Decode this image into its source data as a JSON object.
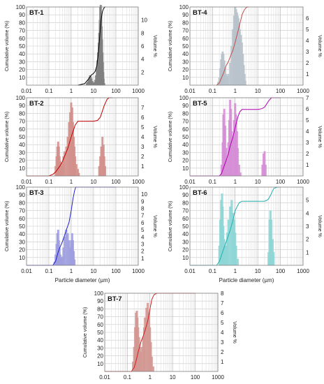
{
  "chart_data": [
    {
      "panel": "BT-1",
      "type": "bar",
      "bar_color": "#808080",
      "line_color": "#000000",
      "ylabel_left": "Cumulative volume (%)",
      "ylabel_right": "Volume %",
      "xlabel": "",
      "ylim_left": [
        0,
        100
      ],
      "ylim_right": [
        0,
        12
      ],
      "xscale": "log",
      "xlim": [
        0.01,
        1000
      ],
      "yticks_left": [
        "10",
        "20",
        "30",
        "40",
        "50",
        "60",
        "70",
        "80",
        "90",
        "100"
      ],
      "yticks_right": [
        "2",
        "4",
        "6",
        "8",
        "10"
      ],
      "xticks": [
        "0.01",
        "0.1",
        "1",
        "10",
        "100",
        "1000"
      ],
      "bars": {
        "x": [
          5,
          5.5,
          6,
          6.5,
          7,
          7.5,
          8,
          9,
          10,
          11,
          12,
          13,
          14,
          15,
          16,
          17,
          18,
          19,
          20,
          21,
          22,
          23,
          24,
          25,
          26,
          27,
          28,
          30
        ],
        "values": [
          0.3,
          0.5,
          0.8,
          1.2,
          1.5,
          1.3,
          1.0,
          0.6,
          0.4,
          0.4,
          0.8,
          1.5,
          2.5,
          3.8,
          5,
          6.5,
          8,
          10,
          12,
          12.3,
          11,
          9,
          7,
          5,
          3.5,
          2,
          1,
          0.3
        ]
      },
      "cumulative": {
        "x": [
          2,
          4,
          6,
          8,
          10,
          12,
          14,
          16,
          18,
          20,
          22,
          25,
          28,
          32,
          35
        ],
        "values": [
          0,
          2,
          8,
          13,
          15,
          18,
          25,
          38,
          55,
          72,
          85,
          94,
          98,
          100,
          100
        ]
      }
    },
    {
      "panel": "BT-4",
      "type": "bar",
      "bar_color": "#b9c3cc",
      "line_color": "#c0504d",
      "ylabel_left": "Cumulative volume (%)",
      "ylabel_right": "Volume %",
      "xlabel": "",
      "ylim_left": [
        0,
        100
      ],
      "ylim_right": [
        0,
        7
      ],
      "xscale": "log",
      "xlim": [
        0.01,
        1000
      ],
      "yticks_left": [
        "10",
        "20",
        "30",
        "40",
        "50",
        "60",
        "70",
        "80",
        "90",
        "100"
      ],
      "yticks_right": [
        "1",
        "2",
        "3",
        "4",
        "5",
        "6"
      ],
      "xticks": [
        "0.01",
        "0.1",
        "1",
        "10",
        "100",
        "1000"
      ],
      "bars": {
        "x": [
          0.18,
          0.2,
          0.22,
          0.24,
          0.26,
          0.28,
          0.3,
          0.33,
          0.36,
          0.4,
          0.45,
          0.5,
          0.6,
          0.7,
          0.8,
          0.9,
          1.0,
          1.1,
          1.2,
          1.3,
          1.4,
          1.5,
          1.6,
          1.8,
          2.0,
          2.2,
          2.4,
          2.6,
          2.8
        ],
        "values": [
          0.3,
          0.7,
          1.5,
          2.3,
          2.8,
          3.0,
          2.8,
          2.2,
          1.5,
          1.0,
          0.8,
          1.0,
          2.0,
          3.5,
          5.0,
          6.2,
          7.0,
          6.8,
          6.5,
          6.2,
          6.0,
          5.6,
          5.0,
          4.5,
          3.8,
          2.8,
          1.8,
          1.0,
          0.4
        ]
      },
      "cumulative": {
        "x": [
          0.15,
          0.2,
          0.3,
          0.4,
          0.5,
          0.6,
          0.8,
          1,
          1.5,
          2,
          2.5,
          3,
          3.5,
          4
        ],
        "values": [
          0,
          3,
          15,
          25,
          30,
          36,
          45,
          55,
          75,
          90,
          96,
          99,
          100,
          100
        ]
      }
    },
    {
      "panel": "BT-2",
      "type": "bar",
      "bar_color": "#d3908b",
      "line_color": "#c00000",
      "ylabel_left": "Cumulative volume (%)",
      "ylabel_right": "Volume %",
      "xlabel": "",
      "ylim_left": [
        0,
        100
      ],
      "ylim_right": [
        0,
        8
      ],
      "xscale": "log",
      "xlim": [
        0.01,
        1000
      ],
      "yticks_left": [
        "10",
        "20",
        "30",
        "40",
        "50",
        "60",
        "70",
        "80",
        "90",
        "100"
      ],
      "yticks_right": [
        "1",
        "2",
        "3",
        "4",
        "5",
        "6",
        "7"
      ],
      "xticks": [
        "0.01",
        "0.1",
        "1",
        "10",
        "100",
        "1000"
      ],
      "bars": {
        "x": [
          0.2,
          0.22,
          0.24,
          0.26,
          0.28,
          0.3,
          0.33,
          0.36,
          0.4,
          0.45,
          0.5,
          0.6,
          0.7,
          0.8,
          0.9,
          1.0,
          1.1,
          1.2,
          1.3,
          1.4,
          1.5,
          1.7,
          2.0,
          2.2,
          18,
          20,
          22,
          25,
          28,
          30,
          33
        ],
        "values": [
          1.0,
          2.0,
          3.0,
          3.5,
          3.0,
          2.0,
          1.5,
          1.0,
          1.3,
          2.0,
          2.5,
          3.0,
          4.0,
          5.5,
          6.5,
          7.5,
          7.0,
          5.5,
          4.0,
          3.0,
          2.0,
          1.2,
          0.7,
          0.3,
          1.0,
          2.0,
          3.0,
          4.0,
          3.2,
          2.0,
          1.0
        ]
      },
      "cumulative": {
        "x": [
          0.01,
          0.1,
          0.15,
          0.2,
          0.3,
          0.4,
          0.5,
          0.7,
          1,
          1.5,
          2,
          3,
          10,
          15,
          20,
          30,
          40,
          50,
          70
        ],
        "values": [
          0,
          0,
          2,
          5,
          12,
          18,
          25,
          35,
          50,
          65,
          70,
          70,
          70,
          71,
          75,
          90,
          98,
          100,
          100
        ]
      }
    },
    {
      "panel": "BT-5",
      "type": "bar",
      "bar_color": "#d68fd6",
      "line_color": "#b000b0",
      "ylabel_left": "Cumulative volume (%)",
      "ylabel_right": "Volume %",
      "xlabel": "",
      "ylim_left": [
        0,
        100
      ],
      "ylim_right": [
        0,
        7
      ],
      "xscale": "log",
      "xlim": [
        0.01,
        1000
      ],
      "yticks_left": [
        "10",
        "20",
        "30",
        "40",
        "50",
        "60",
        "70",
        "80",
        "90",
        "100"
      ],
      "yticks_right": [
        "1",
        "2",
        "3",
        "4",
        "5",
        "6",
        "7"
      ],
      "xticks": [
        "0.01",
        "0.1",
        "1",
        "10",
        "100",
        "1000"
      ],
      "bars": {
        "x": [
          0.25,
          0.28,
          0.3,
          0.33,
          0.36,
          0.4,
          0.45,
          0.5,
          0.55,
          0.6,
          0.65,
          0.7,
          0.8,
          0.9,
          1.0,
          1.1,
          1.2,
          1.3,
          1.5,
          1.7,
          16,
          18,
          20,
          22
        ],
        "values": [
          1.0,
          3.0,
          5.5,
          6.0,
          4.5,
          2.5,
          1.5,
          3.0,
          5.0,
          6.8,
          6.0,
          4.0,
          3.5,
          5.0,
          6.5,
          5.5,
          4.0,
          2.5,
          1.0,
          0.3,
          1.0,
          2.0,
          2.2,
          1.0
        ]
      },
      "cumulative": {
        "x": [
          0.01,
          0.2,
          0.25,
          0.3,
          0.4,
          0.5,
          0.6,
          0.8,
          1,
          1.3,
          1.6,
          2,
          10,
          15,
          20,
          30,
          40,
          60,
          100
        ],
        "values": [
          0,
          0,
          3,
          10,
          20,
          28,
          38,
          50,
          62,
          75,
          82,
          85,
          85,
          86,
          88,
          96,
          100,
          100,
          100
        ]
      }
    },
    {
      "panel": "BT-3",
      "type": "bar",
      "bar_color": "#9f9fe0",
      "line_color": "#2020d0",
      "ylabel_left": "Cumulative volume (%)",
      "ylabel_right": "Volume %",
      "xlabel": "Particle diameter (µm)",
      "ylim_left": [
        0,
        100
      ],
      "ylim_right": [
        0,
        11
      ],
      "xscale": "log",
      "xlim": [
        0.01,
        1000
      ],
      "yticks_left": [
        "10",
        "20",
        "30",
        "40",
        "50",
        "60",
        "70",
        "80",
        "90",
        "100"
      ],
      "yticks_right": [
        "1",
        "2",
        "3",
        "4",
        "5",
        "6",
        "7",
        "8",
        "9",
        "10"
      ],
      "xticks": [
        "0.01",
        "0.1",
        "1",
        "10",
        "100",
        "1000"
      ],
      "bars": {
        "x": [
          0.18,
          0.2,
          0.22,
          0.24,
          0.26,
          0.28,
          0.3,
          0.33,
          0.36,
          0.4,
          0.45,
          0.5,
          0.6,
          0.7,
          0.8,
          0.9,
          1.0,
          1.1,
          1.2,
          1.3,
          1.4
        ],
        "values": [
          0.5,
          1.5,
          3.0,
          4.5,
          5.0,
          3.5,
          2.5,
          1.5,
          1.0,
          1.2,
          2.5,
          4.0,
          5.0,
          4.5,
          3.5,
          2.5,
          3.5,
          4.5,
          3.5,
          2.0,
          0.8
        ]
      },
      "cumulative": {
        "x": [
          0.01,
          0.15,
          0.2,
          0.25,
          0.3,
          0.4,
          0.5,
          0.6,
          0.8,
          1,
          1.2,
          1.4,
          1.6,
          2,
          100
        ],
        "values": [
          0,
          0,
          5,
          15,
          22,
          30,
          38,
          45,
          55,
          70,
          85,
          95,
          100,
          100,
          100
        ]
      }
    },
    {
      "panel": "BT-6",
      "type": "bar",
      "bar_color": "#8fd6d6",
      "line_color": "#20b0b0",
      "ylabel_left": "Cumulative volume (%)",
      "ylabel_right": "Volume %",
      "xlabel": "Particle diameter (µm)",
      "ylim_left": [
        0,
        100
      ],
      "ylim_right": [
        0,
        6
      ],
      "xscale": "log",
      "xlim": [
        0.01,
        1000
      ],
      "yticks_left": [
        "10",
        "20",
        "30",
        "40",
        "50",
        "60",
        "70",
        "80",
        "90",
        "100"
      ],
      "yticks_right": [
        "1",
        "2",
        "3",
        "4",
        "5"
      ],
      "xticks": [
        "0.01",
        "0.1",
        "1",
        "10",
        "100",
        "1000"
      ],
      "bars": {
        "x": [
          0.2,
          0.22,
          0.24,
          0.26,
          0.28,
          0.3,
          0.33,
          0.36,
          0.4,
          0.45,
          0.5,
          0.6,
          0.7,
          0.8,
          0.9,
          1.0,
          1.1,
          1.3,
          30,
          33,
          36,
          40,
          45,
          50
        ],
        "values": [
          1.5,
          3.5,
          5.0,
          5.5,
          4.5,
          3.0,
          2.0,
          1.5,
          1.5,
          2.5,
          3.5,
          4.5,
          5.0,
          4.0,
          3.5,
          2.5,
          1.5,
          0.5,
          1.0,
          3.5,
          4.2,
          3.5,
          2.0,
          1.0
        ]
      },
      "cumulative": {
        "x": [
          0.01,
          0.15,
          0.2,
          0.3,
          0.4,
          0.5,
          0.6,
          0.8,
          1,
          1.5,
          2,
          20,
          25,
          30,
          40,
          50,
          70,
          100
        ],
        "values": [
          0,
          0,
          5,
          20,
          30,
          38,
          45,
          58,
          70,
          80,
          82,
          82,
          83,
          85,
          92,
          98,
          100,
          100
        ]
      }
    },
    {
      "panel": "BT-7",
      "type": "bar",
      "bar_color": "#d39994",
      "line_color": "#d02020",
      "ylabel_left": "Cumulative volume (%)",
      "ylabel_right": "Volume %",
      "xlabel": "Particle diameter (µm)",
      "ylim_left": [
        0,
        100
      ],
      "ylim_right": [
        0,
        8
      ],
      "xscale": "log",
      "xlim": [
        0.01,
        1000
      ],
      "yticks_left": [
        "10",
        "20",
        "30",
        "40",
        "50",
        "60",
        "70",
        "80",
        "90",
        "100"
      ],
      "yticks_right": [
        "1",
        "2",
        "3",
        "4",
        "5",
        "6",
        "7",
        "8"
      ],
      "xticks": [
        "0.01",
        "0.1",
        "1",
        "10",
        "100",
        "1000"
      ],
      "bars": {
        "x": [
          0.18,
          0.2,
          0.22,
          0.24,
          0.26,
          0.28,
          0.3,
          0.33,
          0.36,
          0.4,
          0.45,
          0.5,
          0.55,
          0.6,
          0.7,
          0.8,
          0.9,
          1.0,
          1.1,
          1.2,
          1.4
        ],
        "values": [
          1.0,
          2.5,
          4.5,
          6.0,
          6.2,
          5.5,
          4.5,
          3.5,
          2.5,
          2.0,
          2.5,
          3.5,
          4.5,
          5.5,
          6.5,
          7.0,
          6.0,
          4.5,
          3.0,
          1.5,
          0.5
        ]
      },
      "cumulative": {
        "x": [
          0.01,
          0.15,
          0.2,
          0.25,
          0.3,
          0.4,
          0.5,
          0.6,
          0.8,
          1,
          1.2,
          1.5,
          2,
          100
        ],
        "values": [
          0,
          0,
          5,
          15,
          25,
          38,
          45,
          52,
          65,
          80,
          92,
          98,
          100,
          100
        ]
      }
    }
  ]
}
